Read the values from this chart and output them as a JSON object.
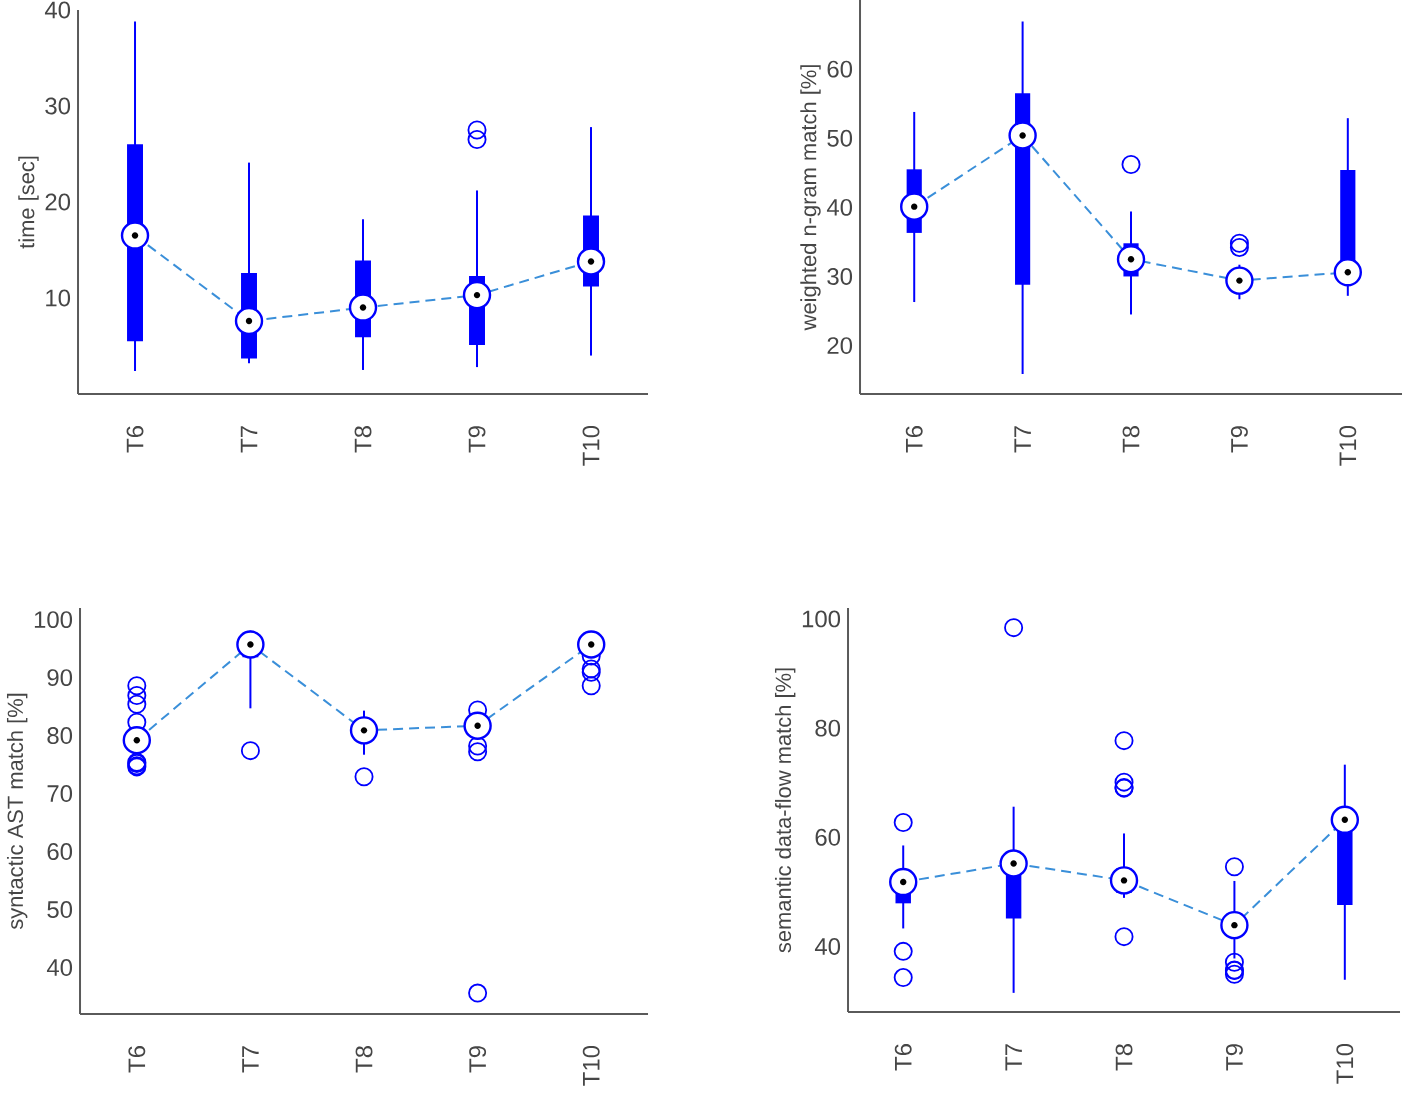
{
  "chart_data": [
    {
      "type": "box",
      "ylabel": "time [sec]",
      "categories": [
        "T6",
        "T7",
        "T8",
        "T9",
        "T10"
      ],
      "ylim": [
        0,
        40
      ],
      "yticks": [
        10,
        20,
        30,
        40
      ],
      "series": [
        {
          "type": "box",
          "color": "#0000ff",
          "boxes": [
            {
              "low": 2.4,
              "q1": 5.5,
              "median": 16.5,
              "q3": 26.0,
              "high": 38.8
            },
            {
              "low": 3.2,
              "q1": 3.7,
              "median": 7.6,
              "q3": 12.6,
              "high": 24.1
            },
            {
              "low": 2.5,
              "q1": 5.9,
              "median": 9.0,
              "q3": 13.9,
              "high": 18.2
            },
            {
              "low": 2.8,
              "q1": 5.1,
              "median": 10.3,
              "q3": 12.3,
              "high": 21.2,
              "outliers": [
                27.5,
                26.5
              ]
            },
            {
              "low": 4.0,
              "q1": 11.2,
              "median": 13.8,
              "q3": 18.6,
              "high": 27.8
            }
          ]
        },
        {
          "type": "line",
          "color": "#3a8fd9",
          "line_style": "dashed",
          "marker": "circle",
          "values": [
            16.5,
            7.6,
            9.0,
            10.3,
            13.8
          ]
        }
      ]
    },
    {
      "type": "box",
      "ylabel": "weighted n-gram match [%]",
      "categories": [
        "T6",
        "T7",
        "T8",
        "T9",
        "T10"
      ],
      "ylim": [
        13,
        70
      ],
      "yticks": [
        20,
        30,
        40,
        50,
        60
      ],
      "series": [
        {
          "type": "box",
          "color": "#0000ff",
          "boxes": [
            {
              "low": 26.3,
              "q1": 36.3,
              "median": 40.1,
              "q3": 45.5,
              "high": 53.8
            },
            {
              "low": 15.9,
              "q1": 28.8,
              "median": 50.4,
              "q3": 56.5,
              "high": 66.9
            },
            {
              "low": 24.5,
              "q1": 30.0,
              "median": 32.5,
              "q3": 34.8,
              "high": 39.4,
              "outliers": [
                46.2
              ]
            },
            {
              "low": 26.7,
              "q1": 28.2,
              "median": 29.4,
              "q3": 30.6,
              "high": 31.7,
              "outliers": [
                34.2,
                34.8
              ]
            },
            {
              "low": 27.2,
              "q1": 29.1,
              "median": 30.6,
              "q3": 45.4,
              "high": 52.9
            }
          ]
        },
        {
          "type": "line",
          "color": "#3a8fd9",
          "line_style": "dashed",
          "marker": "circle",
          "values": [
            40.1,
            50.4,
            32.5,
            29.4,
            30.6
          ]
        }
      ]
    },
    {
      "type": "box",
      "ylabel": "syntactic AST match [%]",
      "categories": [
        "T6",
        "T7",
        "T8",
        "T9",
        "T10"
      ],
      "ylim": [
        32,
        102
      ],
      "yticks": [
        40,
        50,
        60,
        70,
        80,
        90,
        100
      ],
      "series": [
        {
          "type": "box",
          "color": "#0000ff",
          "boxes": [
            {
              "low": 78.0,
              "q1": 78.5,
              "median": 79.2,
              "q3": 80.0,
              "high": 81.0,
              "outliers": [
                88.6,
                86.9,
                85.4,
                82.3,
                78.4,
                78.4,
                74.6,
                75.2,
                75.4,
                74.8
              ]
            },
            {
              "low": 84.7,
              "q1": 93.5,
              "median": 95.7,
              "q3": 97.7,
              "high": 98.1,
              "outliers": [
                77.4
              ]
            },
            {
              "low": 76.7,
              "q1": 79.8,
              "median": 80.9,
              "q3": 82.1,
              "high": 84.3,
              "outliers": [
                72.9
              ]
            },
            {
              "low": 80.0,
              "q1": 80.5,
              "median": 81.7,
              "q3": 82.4,
              "high": 83.0,
              "outliers": [
                84.4,
                78.2,
                77.2,
                35.6
              ]
            },
            {
              "low": 94.5,
              "q1": 94.8,
              "median": 95.7,
              "q3": 96.0,
              "high": 96.5,
              "outliers": [
                93.7,
                91.5,
                90.9,
                88.6
              ]
            }
          ]
        },
        {
          "type": "line",
          "color": "#3a8fd9",
          "line_style": "dashed",
          "marker": "circle",
          "values": [
            79.2,
            95.7,
            80.9,
            81.7,
            95.7
          ]
        }
      ]
    },
    {
      "type": "box",
      "ylabel": "semantic data-flow match [%]",
      "categories": [
        "T6",
        "T7",
        "T8",
        "T9",
        "T10"
      ],
      "ylim": [
        28,
        102
      ],
      "yticks": [
        40,
        60,
        80,
        100
      ],
      "series": [
        {
          "type": "box",
          "color": "#0000ff",
          "boxes": [
            {
              "low": 43.3,
              "q1": 47.9,
              "median": 51.8,
              "q3": 53.4,
              "high": 58.5,
              "outliers": [
                62.7,
                39.1,
                34.3
              ]
            },
            {
              "low": 31.5,
              "q1": 45.1,
              "median": 55.2,
              "q3": 55.2,
              "high": 65.6,
              "outliers": [
                98.4
              ]
            },
            {
              "low": 48.9,
              "q1": 49.8,
              "median": 52.1,
              "q3": 54.3,
              "high": 60.7,
              "outliers": [
                77.7,
                70.1,
                69.1,
                69.0,
                41.8
              ]
            },
            {
              "low": 37.8,
              "q1": 42.2,
              "median": 43.9,
              "q3": 45.9,
              "high": 52.0,
              "outliers": [
                54.6,
                37.1,
                35.6,
                34.9,
                35.7
              ]
            },
            {
              "low": 33.9,
              "q1": 47.6,
              "median": 63.2,
              "q3": 63.2,
              "high": 73.3
            }
          ]
        },
        {
          "type": "line",
          "color": "#3a8fd9",
          "line_style": "dashed",
          "marker": "circle",
          "values": [
            51.8,
            55.2,
            52.1,
            43.9,
            63.2
          ]
        }
      ]
    }
  ]
}
